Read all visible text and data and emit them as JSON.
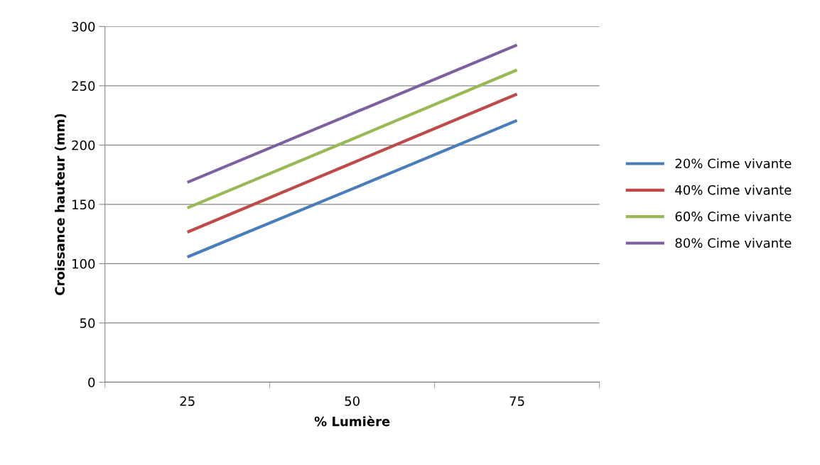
{
  "chart_data": {
    "type": "line",
    "xlabel": "% Lumière",
    "ylabel": "Croissance hauteur (mm)",
    "categories": [
      "25",
      "50",
      "75"
    ],
    "series": [
      {
        "name": "20% Cime vivante",
        "color": "#4a7ebb",
        "values": [
          105.6,
          163,
          220.8
        ]
      },
      {
        "name": "40% Cime vivante",
        "color": "#be4b48",
        "values": [
          126.6,
          184.8,
          243
        ]
      },
      {
        "name": "60% Cime vivante",
        "color": "#98b954",
        "values": [
          147,
          205,
          263.4
        ]
      },
      {
        "name": "80% Cime vivante",
        "color": "#7d60a0",
        "values": [
          168.6,
          226.5,
          284.4
        ]
      }
    ],
    "ylim": [
      0,
      300
    ],
    "yticks": [
      0,
      50,
      100,
      150,
      200,
      250,
      300
    ],
    "grid": "y",
    "legend": "right",
    "marker": "none",
    "line_style": "solid"
  }
}
